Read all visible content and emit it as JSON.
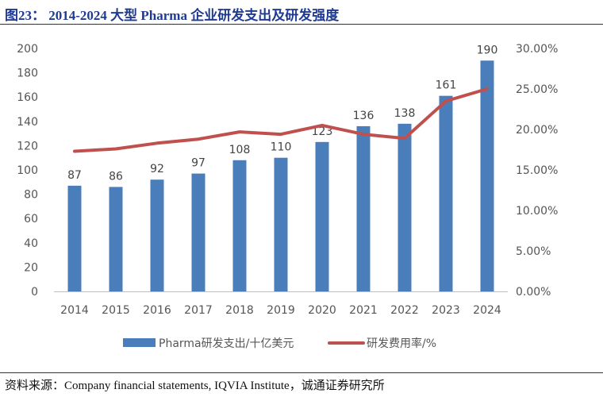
{
  "figure": {
    "title": "图23：  2014-2024 大型  Pharma  企业研发支出及研发强度",
    "source": "资料来源：Company financial statements, IQVIA Institute，诚通证券研究所"
  },
  "chart_data": {
    "type": "bar+line",
    "categories": [
      "2014",
      "2015",
      "2016",
      "2017",
      "2018",
      "2019",
      "2020",
      "2021",
      "2022",
      "2023",
      "2024"
    ],
    "series": [
      {
        "name": "Pharma研发支出/十亿美元",
        "type": "bar",
        "axis": "left",
        "color": "#4a7ebb",
        "values": [
          87,
          86,
          92,
          97,
          108,
          110,
          123,
          136,
          138,
          161,
          190
        ],
        "labels": [
          "87",
          "86",
          "92",
          "97",
          "108",
          "110",
          "123",
          "136",
          "138",
          "161",
          "190"
        ]
      },
      {
        "name": "研发费用率/%",
        "type": "line",
        "axis": "right",
        "color": "#c0504d",
        "values": [
          17.3,
          17.6,
          18.3,
          18.8,
          19.7,
          19.4,
          20.5,
          19.4,
          18.9,
          23.5,
          25.0
        ]
      }
    ],
    "y_left": {
      "range": [
        0,
        200
      ],
      "ticks": [
        0,
        20,
        40,
        60,
        80,
        100,
        120,
        140,
        160,
        180,
        200
      ],
      "tick_labels": [
        "0",
        "20",
        "40",
        "60",
        "80",
        "100",
        "120",
        "140",
        "160",
        "180",
        "200"
      ]
    },
    "y_right": {
      "range": [
        0,
        30
      ],
      "ticks": [
        0,
        5,
        10,
        15,
        20,
        25,
        30
      ],
      "tick_labels": [
        "0.00%",
        "5.00%",
        "10.00%",
        "15.00%",
        "20.00%",
        "25.00%",
        "30.00%"
      ]
    },
    "grid": false,
    "legend_position": "bottom"
  }
}
